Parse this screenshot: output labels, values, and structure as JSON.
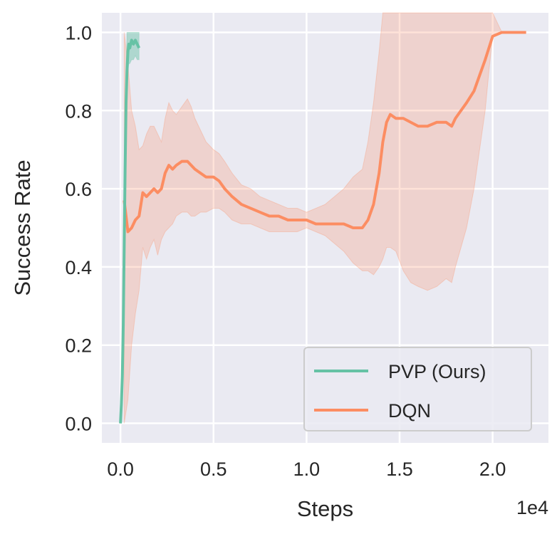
{
  "chart_data": {
    "type": "line",
    "xlabel": "Steps",
    "ylabel": "Success Rate",
    "x_scale_label": "1e4",
    "x_scale_factor": 10000,
    "xlim": [
      -1000,
      23000
    ],
    "ylim": [
      -0.05,
      1.05
    ],
    "xticks": [
      0,
      5000,
      10000,
      15000,
      20000
    ],
    "xtick_labels": [
      "0.0",
      "0.5",
      "1.0",
      "1.5",
      "2.0"
    ],
    "yticks": [
      0.0,
      0.2,
      0.4,
      0.6,
      0.8,
      1.0
    ],
    "ytick_labels": [
      "0.0",
      "0.2",
      "0.4",
      "0.6",
      "0.8",
      "1.0"
    ],
    "grid": true,
    "legend_position": "bottom-right",
    "series": [
      {
        "name": "PVP (Ours)",
        "color": "#66c2a5",
        "x": [
          0,
          50,
          100,
          150,
          200,
          250,
          300,
          350,
          400,
          450,
          500,
          600,
          700,
          800,
          900,
          1000
        ],
        "y": [
          0.0,
          0.05,
          0.12,
          0.25,
          0.45,
          0.65,
          0.82,
          0.9,
          0.95,
          0.97,
          0.96,
          0.98,
          0.97,
          0.98,
          0.97,
          0.96
        ],
        "band_lower": [
          0.0,
          0.0,
          0.05,
          0.15,
          0.35,
          0.55,
          0.72,
          0.85,
          0.9,
          0.92,
          0.92,
          0.93,
          0.93,
          0.94,
          0.93,
          0.93
        ],
        "band_upper": [
          0.0,
          0.1,
          0.2,
          0.35,
          0.55,
          0.75,
          0.9,
          1.0,
          1.0,
          1.0,
          1.0,
          1.0,
          1.0,
          1.0,
          1.0,
          1.0
        ]
      },
      {
        "name": "DQN",
        "color": "#fc8d62",
        "x": [
          200,
          400,
          600,
          800,
          1000,
          1200,
          1400,
          1600,
          1800,
          2000,
          2200,
          2400,
          2600,
          2800,
          3000,
          3300,
          3600,
          3800,
          4000,
          4300,
          4600,
          5000,
          5300,
          5600,
          6000,
          6500,
          7000,
          7500,
          8000,
          8500,
          9000,
          9500,
          10000,
          10500,
          11000,
          11500,
          12000,
          12500,
          13000,
          13300,
          13600,
          13900,
          14100,
          14300,
          14500,
          14800,
          15200,
          15600,
          16000,
          16500,
          17000,
          17500,
          17800,
          18000,
          18300,
          18600,
          19000,
          19300,
          19600,
          19800,
          20000,
          20500,
          21000,
          21500,
          21800
        ],
        "y": [
          0.57,
          0.49,
          0.5,
          0.52,
          0.53,
          0.59,
          0.58,
          0.59,
          0.6,
          0.59,
          0.6,
          0.64,
          0.66,
          0.65,
          0.66,
          0.67,
          0.67,
          0.66,
          0.65,
          0.64,
          0.63,
          0.63,
          0.62,
          0.6,
          0.58,
          0.56,
          0.55,
          0.54,
          0.53,
          0.53,
          0.52,
          0.52,
          0.52,
          0.51,
          0.51,
          0.51,
          0.51,
          0.5,
          0.5,
          0.52,
          0.56,
          0.64,
          0.72,
          0.77,
          0.79,
          0.78,
          0.78,
          0.77,
          0.76,
          0.76,
          0.77,
          0.77,
          0.76,
          0.78,
          0.8,
          0.82,
          0.85,
          0.89,
          0.93,
          0.96,
          0.99,
          1.0,
          1.0,
          1.0,
          1.0
        ],
        "band_lower": [
          0.0,
          0.06,
          0.2,
          0.28,
          0.34,
          0.45,
          0.42,
          0.45,
          0.47,
          0.43,
          0.47,
          0.49,
          0.5,
          0.51,
          0.53,
          0.54,
          0.54,
          0.53,
          0.53,
          0.54,
          0.54,
          0.55,
          0.55,
          0.54,
          0.52,
          0.51,
          0.51,
          0.5,
          0.49,
          0.49,
          0.49,
          0.49,
          0.5,
          0.49,
          0.48,
          0.46,
          0.44,
          0.41,
          0.39,
          0.39,
          0.38,
          0.4,
          0.42,
          0.45,
          0.45,
          0.44,
          0.39,
          0.36,
          0.35,
          0.34,
          0.35,
          0.37,
          0.36,
          0.4,
          0.45,
          0.5,
          0.6,
          0.7,
          0.8,
          0.9,
          0.99,
          1.0,
          1.0,
          1.0,
          1.0
        ],
        "band_upper": [
          1.0,
          0.92,
          0.8,
          0.76,
          0.7,
          0.71,
          0.74,
          0.76,
          0.76,
          0.74,
          0.72,
          0.78,
          0.82,
          0.8,
          0.79,
          0.81,
          0.83,
          0.81,
          0.78,
          0.75,
          0.72,
          0.7,
          0.69,
          0.67,
          0.64,
          0.61,
          0.6,
          0.58,
          0.57,
          0.56,
          0.55,
          0.55,
          0.54,
          0.55,
          0.56,
          0.58,
          0.6,
          0.63,
          0.65,
          0.72,
          0.82,
          0.95,
          1.05,
          1.05,
          1.05,
          1.05,
          1.05,
          1.05,
          1.05,
          1.05,
          1.05,
          1.05,
          1.05,
          1.05,
          1.05,
          1.05,
          1.05,
          1.05,
          1.05,
          1.05,
          1.05,
          1.0,
          1.0,
          1.0,
          1.0
        ]
      }
    ]
  }
}
